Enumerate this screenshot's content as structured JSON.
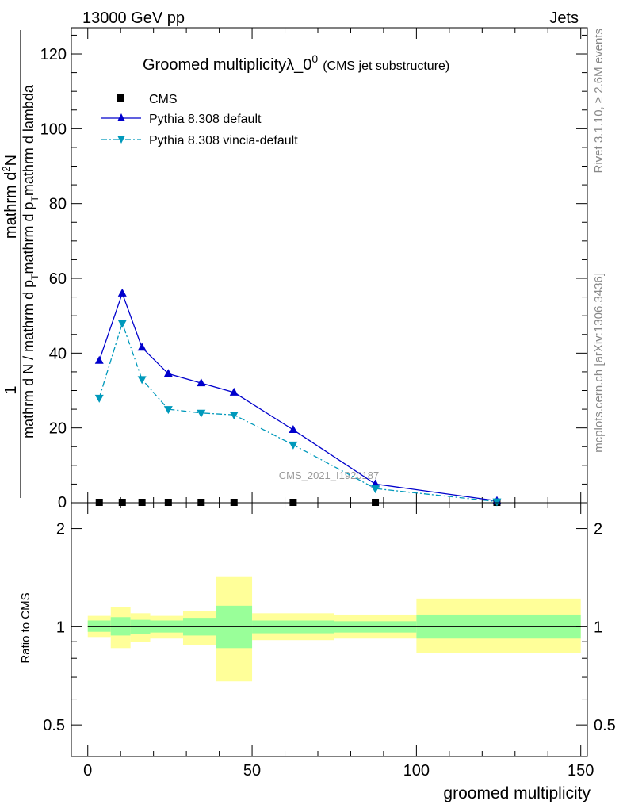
{
  "header": {
    "energy_label": "13000 GeV pp",
    "process_label": "Jets",
    "rivet_label": "Rivet 3.1.10, ≥ 2.6M events",
    "site_label": "mcplots.cern.ch [arXiv:1306.3436]",
    "watermark": "CMS_2021_I1920187"
  },
  "colors": {
    "pythia_default": "#0000cc",
    "pythia_vincia": "#0099bb",
    "data": "#000000",
    "band_outer": "#ffff99",
    "band_inner": "#99ff99"
  },
  "chart_data": [
    {
      "type": "line",
      "title": "Groomed multiplicityλ_0",
      "title_sup": "0",
      "title_note": "(CMS jet substructure)",
      "ylabel_numerator": "1",
      "ylabel_denominator": "mathrm d N / mathrm d p",
      "ylabel_denominator_sub": "T",
      "ylabel_denominator_cont": "mathrm d p",
      "ylabel_denominator_cont_sub": "T",
      "ylabel_denominator_end": "mathrm d lambda",
      "ylabel_num_top": "mathrm d",
      "ylabel_num_sup": "2",
      "ylabel_num_end": "N",
      "xlim": [
        -5,
        152
      ],
      "ylim": [
        0,
        127
      ],
      "yticks": [
        "20",
        "40",
        "60",
        "80",
        "100",
        "120"
      ],
      "legend_position": "top-left",
      "series": [
        {
          "name": "CMS",
          "x": [
            3.5,
            10.5,
            16.5,
            24.5,
            34.5,
            44.5,
            62.5,
            87.5,
            124.5
          ],
          "y": [
            0,
            0,
            0,
            0,
            0,
            0,
            0,
            0,
            0
          ]
        },
        {
          "name": "Pythia 8.308 default",
          "x": [
            3.5,
            10.5,
            16.5,
            24.5,
            34.5,
            44.5,
            62.5,
            87.5,
            124.5
          ],
          "y": [
            38,
            56,
            41.5,
            34.5,
            32,
            29.5,
            19.5,
            5,
            0.5
          ]
        },
        {
          "name": "Pythia 8.308 vincia-default",
          "x": [
            3.5,
            10.5,
            16.5,
            24.5,
            34.5,
            44.5,
            62.5,
            87.5,
            124.5
          ],
          "y": [
            28,
            48,
            33,
            25,
            24,
            23.5,
            15.5,
            3.8,
            0.3
          ]
        }
      ]
    },
    {
      "type": "area",
      "ylabel": "Ratio to CMS",
      "xlabel": "groomed multiplicity",
      "xlim": [
        -5,
        152
      ],
      "ylim": [
        0.4,
        2.4
      ],
      "xticks": [
        "0",
        "50",
        "100",
        "150"
      ],
      "yticks": [
        "0.5",
        "1",
        "2"
      ],
      "bins": [
        {
          "x0": 0,
          "x1": 7,
          "outer": [
            0.93,
            1.08
          ],
          "inner": [
            0.965,
            1.045
          ]
        },
        {
          "x0": 7,
          "x1": 13,
          "outer": [
            0.86,
            1.15
          ],
          "inner": [
            0.94,
            1.07
          ]
        },
        {
          "x0": 13,
          "x1": 19,
          "outer": [
            0.9,
            1.1
          ],
          "inner": [
            0.95,
            1.05
          ]
        },
        {
          "x0": 19,
          "x1": 29,
          "outer": [
            0.92,
            1.08
          ],
          "inner": [
            0.96,
            1.045
          ]
        },
        {
          "x0": 29,
          "x1": 39,
          "outer": [
            0.88,
            1.12
          ],
          "inner": [
            0.94,
            1.065
          ]
        },
        {
          "x0": 39,
          "x1": 50,
          "outer": [
            0.68,
            1.42
          ],
          "inner": [
            0.86,
            1.16
          ]
        },
        {
          "x0": 50,
          "x1": 75,
          "outer": [
            0.91,
            1.1
          ],
          "inner": [
            0.955,
            1.045
          ]
        },
        {
          "x0": 75,
          "x1": 100,
          "outer": [
            0.92,
            1.09
          ],
          "inner": [
            0.96,
            1.04
          ]
        },
        {
          "x0": 100,
          "x1": 150,
          "outer": [
            0.83,
            1.22
          ],
          "inner": [
            0.92,
            1.09
          ]
        }
      ],
      "reference": 1
    }
  ]
}
